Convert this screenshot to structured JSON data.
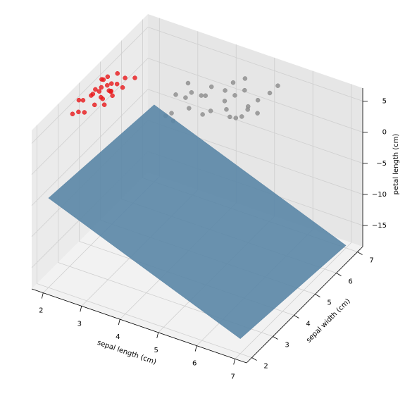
{
  "chart_data": {
    "type": "scatter3d",
    "xlabel": "sepal length (cm)",
    "ylabel": "sepal width (cm)",
    "zlabel": "petal length (cm)",
    "xlim": [
      1.7,
      7.3
    ],
    "ylim": [
      1.75,
      7.25
    ],
    "zlim": [
      -18.4,
      7.1
    ],
    "xticks": [
      2,
      3,
      4,
      5,
      6,
      7
    ],
    "yticks": [
      2,
      3,
      4,
      5,
      6,
      7
    ],
    "zticks": [
      {
        "value": -15,
        "label": "−15"
      },
      {
        "value": -10,
        "label": "−10"
      },
      {
        "value": -5,
        "label": "−5"
      },
      0,
      5
    ],
    "grid": true,
    "series": [
      {
        "color": "#e8191c",
        "x": [
          2.0,
          2.1,
          1.9,
          2.2,
          2.0,
          1.8,
          2.3,
          2.1,
          2.0,
          1.9,
          2.2,
          2.4,
          2.1,
          1.8,
          1.9,
          2.0,
          2.3,
          2.2,
          2.5,
          2.0,
          2.1,
          2.4,
          1.9,
          2.2,
          2.6,
          2.0,
          1.8,
          2.3
        ],
        "y": [
          4.4,
          4.6,
          4.2,
          4.5,
          4.8,
          4.0,
          4.7,
          4.3,
          4.5,
          4.7,
          4.2,
          4.9,
          4.8,
          3.8,
          3.6,
          3.7,
          4.4,
          4.9,
          4.6,
          4.1,
          4.0,
          4.3,
          4.4,
          4.6,
          5.0,
          4.6,
          3.5,
          4.1
        ],
        "z": [
          5.0,
          5.5,
          4.8,
          5.2,
          6.0,
          4.5,
          5.8,
          4.6,
          5.3,
          5.7,
          4.9,
          6.3,
          5.1,
          5.2,
          4.2,
          4.0,
          5.6,
          6.6,
          6.0,
          5.6,
          4.4,
          5.5,
          5.1,
          4.8,
          6.4,
          6.2,
          4.0,
          4.5
        ]
      },
      {
        "color": "#8c8c8c",
        "x": [
          4.5,
          4.0,
          5.0,
          4.3,
          4.8,
          3.7,
          5.2,
          4.6,
          4.1,
          5.4,
          4.9,
          3.9,
          4.4,
          5.1,
          4.7,
          3.6,
          4.2,
          5.3,
          4.5,
          4.0,
          4.8,
          5.5,
          3.8,
          4.6,
          5.0,
          3.5,
          3.4,
          3.5,
          3.6
        ],
        "y": [
          5.8,
          5.6,
          6.0,
          5.5,
          6.2,
          5.4,
          6.1,
          5.7,
          5.9,
          6.3,
          5.6,
          5.2,
          6.0,
          5.8,
          6.4,
          5.7,
          5.3,
          5.9,
          6.2,
          5.8,
          5.5,
          6.5,
          5.5,
          6.1,
          5.7,
          5.3,
          5.0,
          5.1,
          5.0
        ],
        "z": [
          4.0,
          4.5,
          3.5,
          3.0,
          5.0,
          4.2,
          4.6,
          3.2,
          5.1,
          5.5,
          2.8,
          3.6,
          4.8,
          3.9,
          6.0,
          5.3,
          2.9,
          3.4,
          5.6,
          3.8,
          3.1,
          6.2,
          4.9,
          4.1,
          2.9,
          4.6,
          2.0,
          2.3,
          1.6
        ]
      }
    ],
    "surface": {
      "color": "#5a86a6",
      "x": [
        2,
        7
      ],
      "y": [
        2,
        7
      ],
      "z": [
        [
          -4,
          -6
        ],
        [
          -16,
          -18
        ]
      ]
    }
  }
}
